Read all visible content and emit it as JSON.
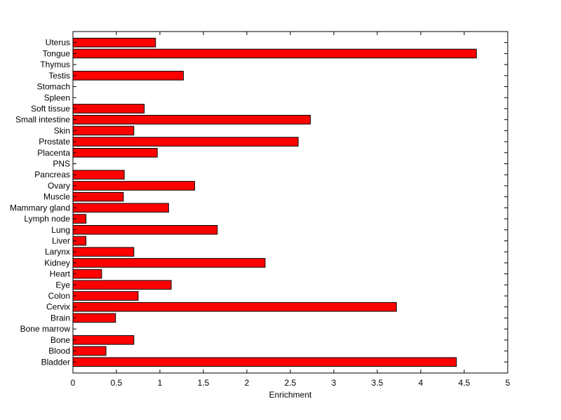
{
  "chart_data": {
    "type": "bar",
    "orientation": "horizontal",
    "title": "",
    "xlabel": "Enrichment",
    "ylabel": "",
    "xlim": [
      0,
      5
    ],
    "xticks": [
      "0",
      "0.5",
      "1",
      "1.5",
      "2",
      "2.5",
      "3",
      "3.5",
      "4",
      "4.5",
      "5"
    ],
    "grid": false,
    "bar_color": "#ff0000",
    "edge_color": "#000000",
    "categories": [
      "Bladder",
      "Blood",
      "Bone",
      "Bone marrow",
      "Brain",
      "Cervix",
      "Colon",
      "Eye",
      "Heart",
      "Kidney",
      "Larynx",
      "Liver",
      "Lung",
      "Lymph node",
      "Mammary gland",
      "Muscle",
      "Ovary",
      "Pancreas",
      "PNS",
      "Placenta",
      "Prostate",
      "Skin",
      "Small intestine",
      "Soft tissue",
      "Spleen",
      "Stomach",
      "Testis",
      "Thymus",
      "Tongue",
      "Uterus"
    ],
    "values": [
      4.41,
      0.38,
      0.7,
      0,
      0.49,
      3.72,
      0.75,
      1.13,
      0.33,
      2.21,
      0.7,
      0.15,
      1.66,
      0.15,
      1.1,
      0.58,
      1.4,
      0.59,
      0,
      0.97,
      2.59,
      0.7,
      2.73,
      0.82,
      0,
      0,
      1.27,
      0,
      4.64,
      0.95
    ]
  }
}
